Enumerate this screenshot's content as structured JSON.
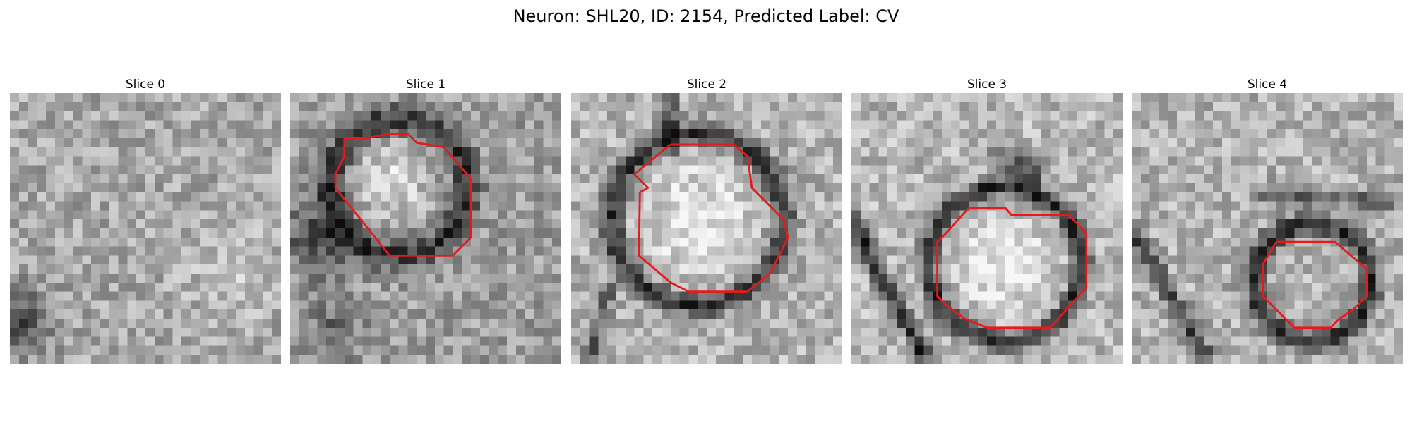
{
  "figure": {
    "title": "Neuron: SHL20, ID: 2154, Predicted Label: CV",
    "contour_color": "#e41a1c",
    "grid_size": 30
  },
  "panels": [
    {
      "title": "Slice 0",
      "has_contour": false
    },
    {
      "title": "Slice 1",
      "has_contour": true
    },
    {
      "title": "Slice 2",
      "has_contour": true
    },
    {
      "title": "Slice 3",
      "has_contour": true
    },
    {
      "title": "Slice 4",
      "has_contour": true
    }
  ]
}
